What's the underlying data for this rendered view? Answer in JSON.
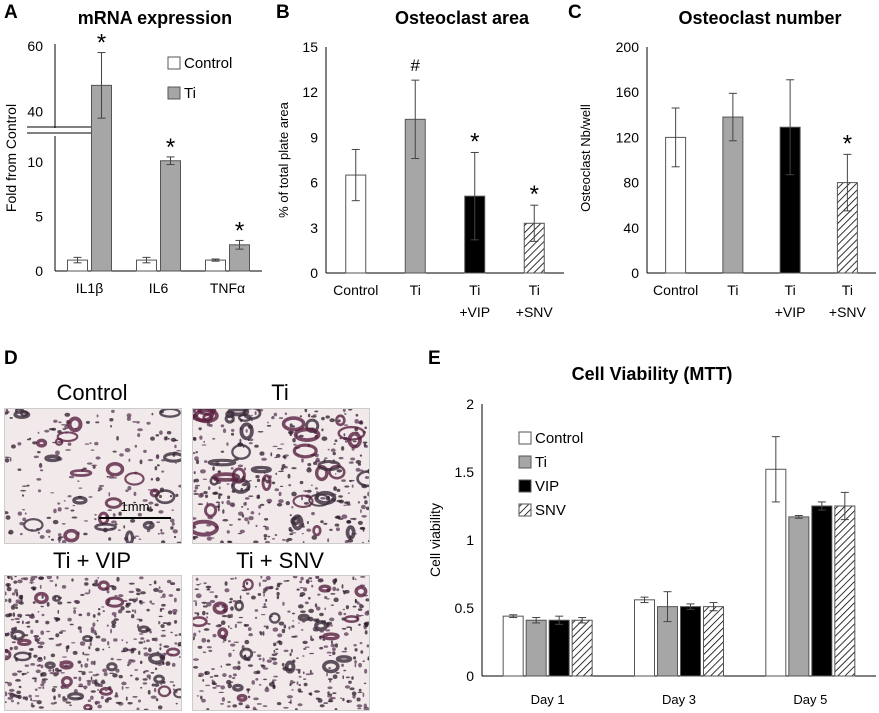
{
  "panel_letters": {
    "A": "A",
    "B": "B",
    "C": "C",
    "D": "D",
    "E": "E"
  },
  "chart_data": [
    {
      "id": "A",
      "type": "bar",
      "title": "mRNA expression",
      "xlabel": "",
      "ylabel": "Fold from Control",
      "categories": [
        "IL1β",
        "IL6",
        "TNFα"
      ],
      "series": [
        {
          "name": "Control",
          "values": [
            1.0,
            1.0,
            1.0
          ],
          "errors": [
            0.25,
            0.25,
            0.1
          ]
        },
        {
          "name": "Ti",
          "values": [
            48,
            10.1,
            2.4
          ],
          "errors": [
            10,
            0.35,
            0.4
          ]
        }
      ],
      "y_axis_break": {
        "lower_range": [
          0,
          12
        ],
        "upper_range": [
          35,
          60
        ]
      },
      "ticks": [
        "0",
        "5",
        "10",
        "40",
        "60"
      ],
      "annotations": [
        "*",
        "*",
        "*"
      ],
      "legend": "top-right"
    },
    {
      "id": "B",
      "type": "bar",
      "title": "Osteoclast area",
      "xlabel": "",
      "ylabel": "% of total plate area",
      "categories": [
        "Control",
        "Ti",
        "Ti +VIP",
        "Ti +SNV"
      ],
      "category_lines": [
        [
          "Control"
        ],
        [
          "Ti"
        ],
        [
          "Ti",
          "+VIP"
        ],
        [
          "Ti",
          "+SNV"
        ]
      ],
      "values": [
        6.5,
        10.2,
        5.1,
        3.3
      ],
      "errors": [
        1.7,
        2.6,
        2.9,
        1.2
      ],
      "fills": [
        "white",
        "gray",
        "black",
        "hatch"
      ],
      "ylim": [
        0,
        15
      ],
      "ticks": [
        "0",
        "3",
        "6",
        "9",
        "12",
        "15"
      ],
      "annotations": [
        "",
        "#",
        "*",
        "*"
      ]
    },
    {
      "id": "C",
      "type": "bar",
      "title": "Osteoclast number",
      "xlabel": "",
      "ylabel": "Osteoclast Nb/well",
      "categories": [
        "Control",
        "Ti",
        "Ti +VIP",
        "Ti +SNV"
      ],
      "category_lines": [
        [
          "Control"
        ],
        [
          "Ti"
        ],
        [
          "Ti",
          "+VIP"
        ],
        [
          "Ti",
          "+SNV"
        ]
      ],
      "values": [
        120,
        138,
        129,
        80
      ],
      "errors": [
        26,
        21,
        42,
        25
      ],
      "fills": [
        "white",
        "gray",
        "black",
        "hatch"
      ],
      "ylim": [
        0,
        200
      ],
      "ticks": [
        "0",
        "40",
        "80",
        "120",
        "160",
        "200"
      ],
      "annotations": [
        "",
        "",
        "",
        "*"
      ]
    },
    {
      "id": "E",
      "type": "bar",
      "title": "Cell Viability (MTT)",
      "xlabel": "",
      "ylabel": "Cell viability",
      "categories": [
        "Day 1",
        "Day 3",
        "Day 5"
      ],
      "series": [
        {
          "name": "Control",
          "fill": "white",
          "values": [
            0.44,
            0.56,
            1.52
          ],
          "errors": [
            0.01,
            0.02,
            0.24
          ]
        },
        {
          "name": "Ti",
          "fill": "gray",
          "values": [
            0.41,
            0.51,
            1.17
          ],
          "errors": [
            0.02,
            0.11,
            0.01
          ]
        },
        {
          "name": "VIP",
          "fill": "black",
          "values": [
            0.41,
            0.51,
            1.25
          ],
          "errors": [
            0.03,
            0.02,
            0.03
          ]
        },
        {
          "name": "SNV",
          "fill": "hatch",
          "values": [
            0.41,
            0.51,
            1.25
          ],
          "errors": [
            0.02,
            0.03,
            0.1
          ]
        }
      ],
      "ylim": [
        0,
        2
      ],
      "ticks": [
        "0",
        "0.5",
        "1",
        "1.5",
        "2"
      ],
      "legend": "top-left"
    }
  ],
  "micrographs": {
    "labels": [
      "Control",
      "Ti",
      "Ti + VIP",
      "Ti + SNV"
    ],
    "scale_bar": "1mm"
  },
  "colors": {
    "gray": "#a6a6a6",
    "black": "#000000",
    "purple": "#5a2040",
    "tissue_bg": "#f1e9ea"
  }
}
